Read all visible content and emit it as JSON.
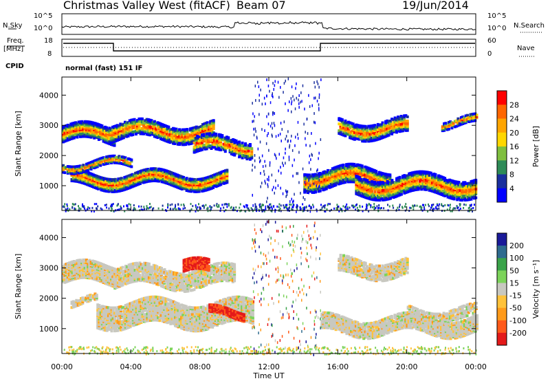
{
  "header": {
    "title": "Christmas Valley West (fitACF)",
    "beam": "Beam 07",
    "date": "19/Jun/2014"
  },
  "top_panels": {
    "nsky_label": "N.Sky",
    "nsky_ticks": [
      "10^5",
      "10^0"
    ],
    "nsearch_label": "N.Search",
    "nsearch_ticks": [
      "10^5",
      "10^0"
    ],
    "freq_label": "Freq.",
    "freq_unit": "[MHz]",
    "freq_ticks": [
      "18",
      "8"
    ],
    "nave_label": "Nave",
    "nave_ticks": [
      "60",
      "0"
    ],
    "cpid_label": "CPID",
    "cpid_value": "normal (fast) 151 IF"
  },
  "chart_data": [
    {
      "type": "heatmap",
      "name": "power",
      "ylabel": "Slant Range [km]",
      "yticks": [
        "4000",
        "3000",
        "2000",
        "1000"
      ],
      "xticks": [
        "00:00",
        "04:00",
        "08:00",
        "12:00",
        "16:00",
        "20:00",
        "00:00"
      ],
      "ylim": [
        180,
        4600
      ],
      "xlim_hours": [
        0,
        24
      ],
      "colorbar_label": "Power [dB]",
      "colorbar_ticks": [
        "28",
        "24",
        "20",
        "16",
        "12",
        "8",
        "4"
      ],
      "colorbar_colors": [
        "#ff0000",
        "#ff6600",
        "#ffa500",
        "#ffd700",
        "#7fbf3f",
        "#2e8b57",
        "#1a2f9e",
        "#0000ff"
      ]
    },
    {
      "type": "heatmap",
      "name": "velocity",
      "ylabel": "Slant Range [km]",
      "yticks": [
        "4000",
        "3000",
        "2000",
        "1000"
      ],
      "xticks": [
        "00:00",
        "04:00",
        "08:00",
        "12:00",
        "16:00",
        "20:00",
        "00:00"
      ],
      "xlabel": "Time UT",
      "ylim": [
        180,
        4600
      ],
      "xlim_hours": [
        0,
        24
      ],
      "colorbar_label": "Velocity [m s⁻¹]",
      "colorbar_ticks": [
        "200",
        "100",
        "50",
        "15",
        "-15",
        "-50",
        "-100",
        "-200"
      ],
      "colorbar_colors": [
        "#1a1a99",
        "#2e6b8f",
        "#3aa34a",
        "#7cd35a",
        "#c8c8c0",
        "#ffc23a",
        "#ff9a1a",
        "#ff5a1a",
        "#e41a1a"
      ]
    }
  ]
}
